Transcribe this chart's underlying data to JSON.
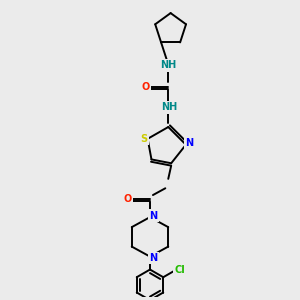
{
  "background_color": "#ebebeb",
  "figsize": [
    3.0,
    3.0
  ],
  "dpi": 100,
  "bond_color": "#000000",
  "bond_lw": 1.4,
  "atom_colors": {
    "N": "#0000ff",
    "O": "#ff2200",
    "S": "#cccc00",
    "Cl": "#22bb00",
    "H": "#008888"
  },
  "font_size": 7.0
}
